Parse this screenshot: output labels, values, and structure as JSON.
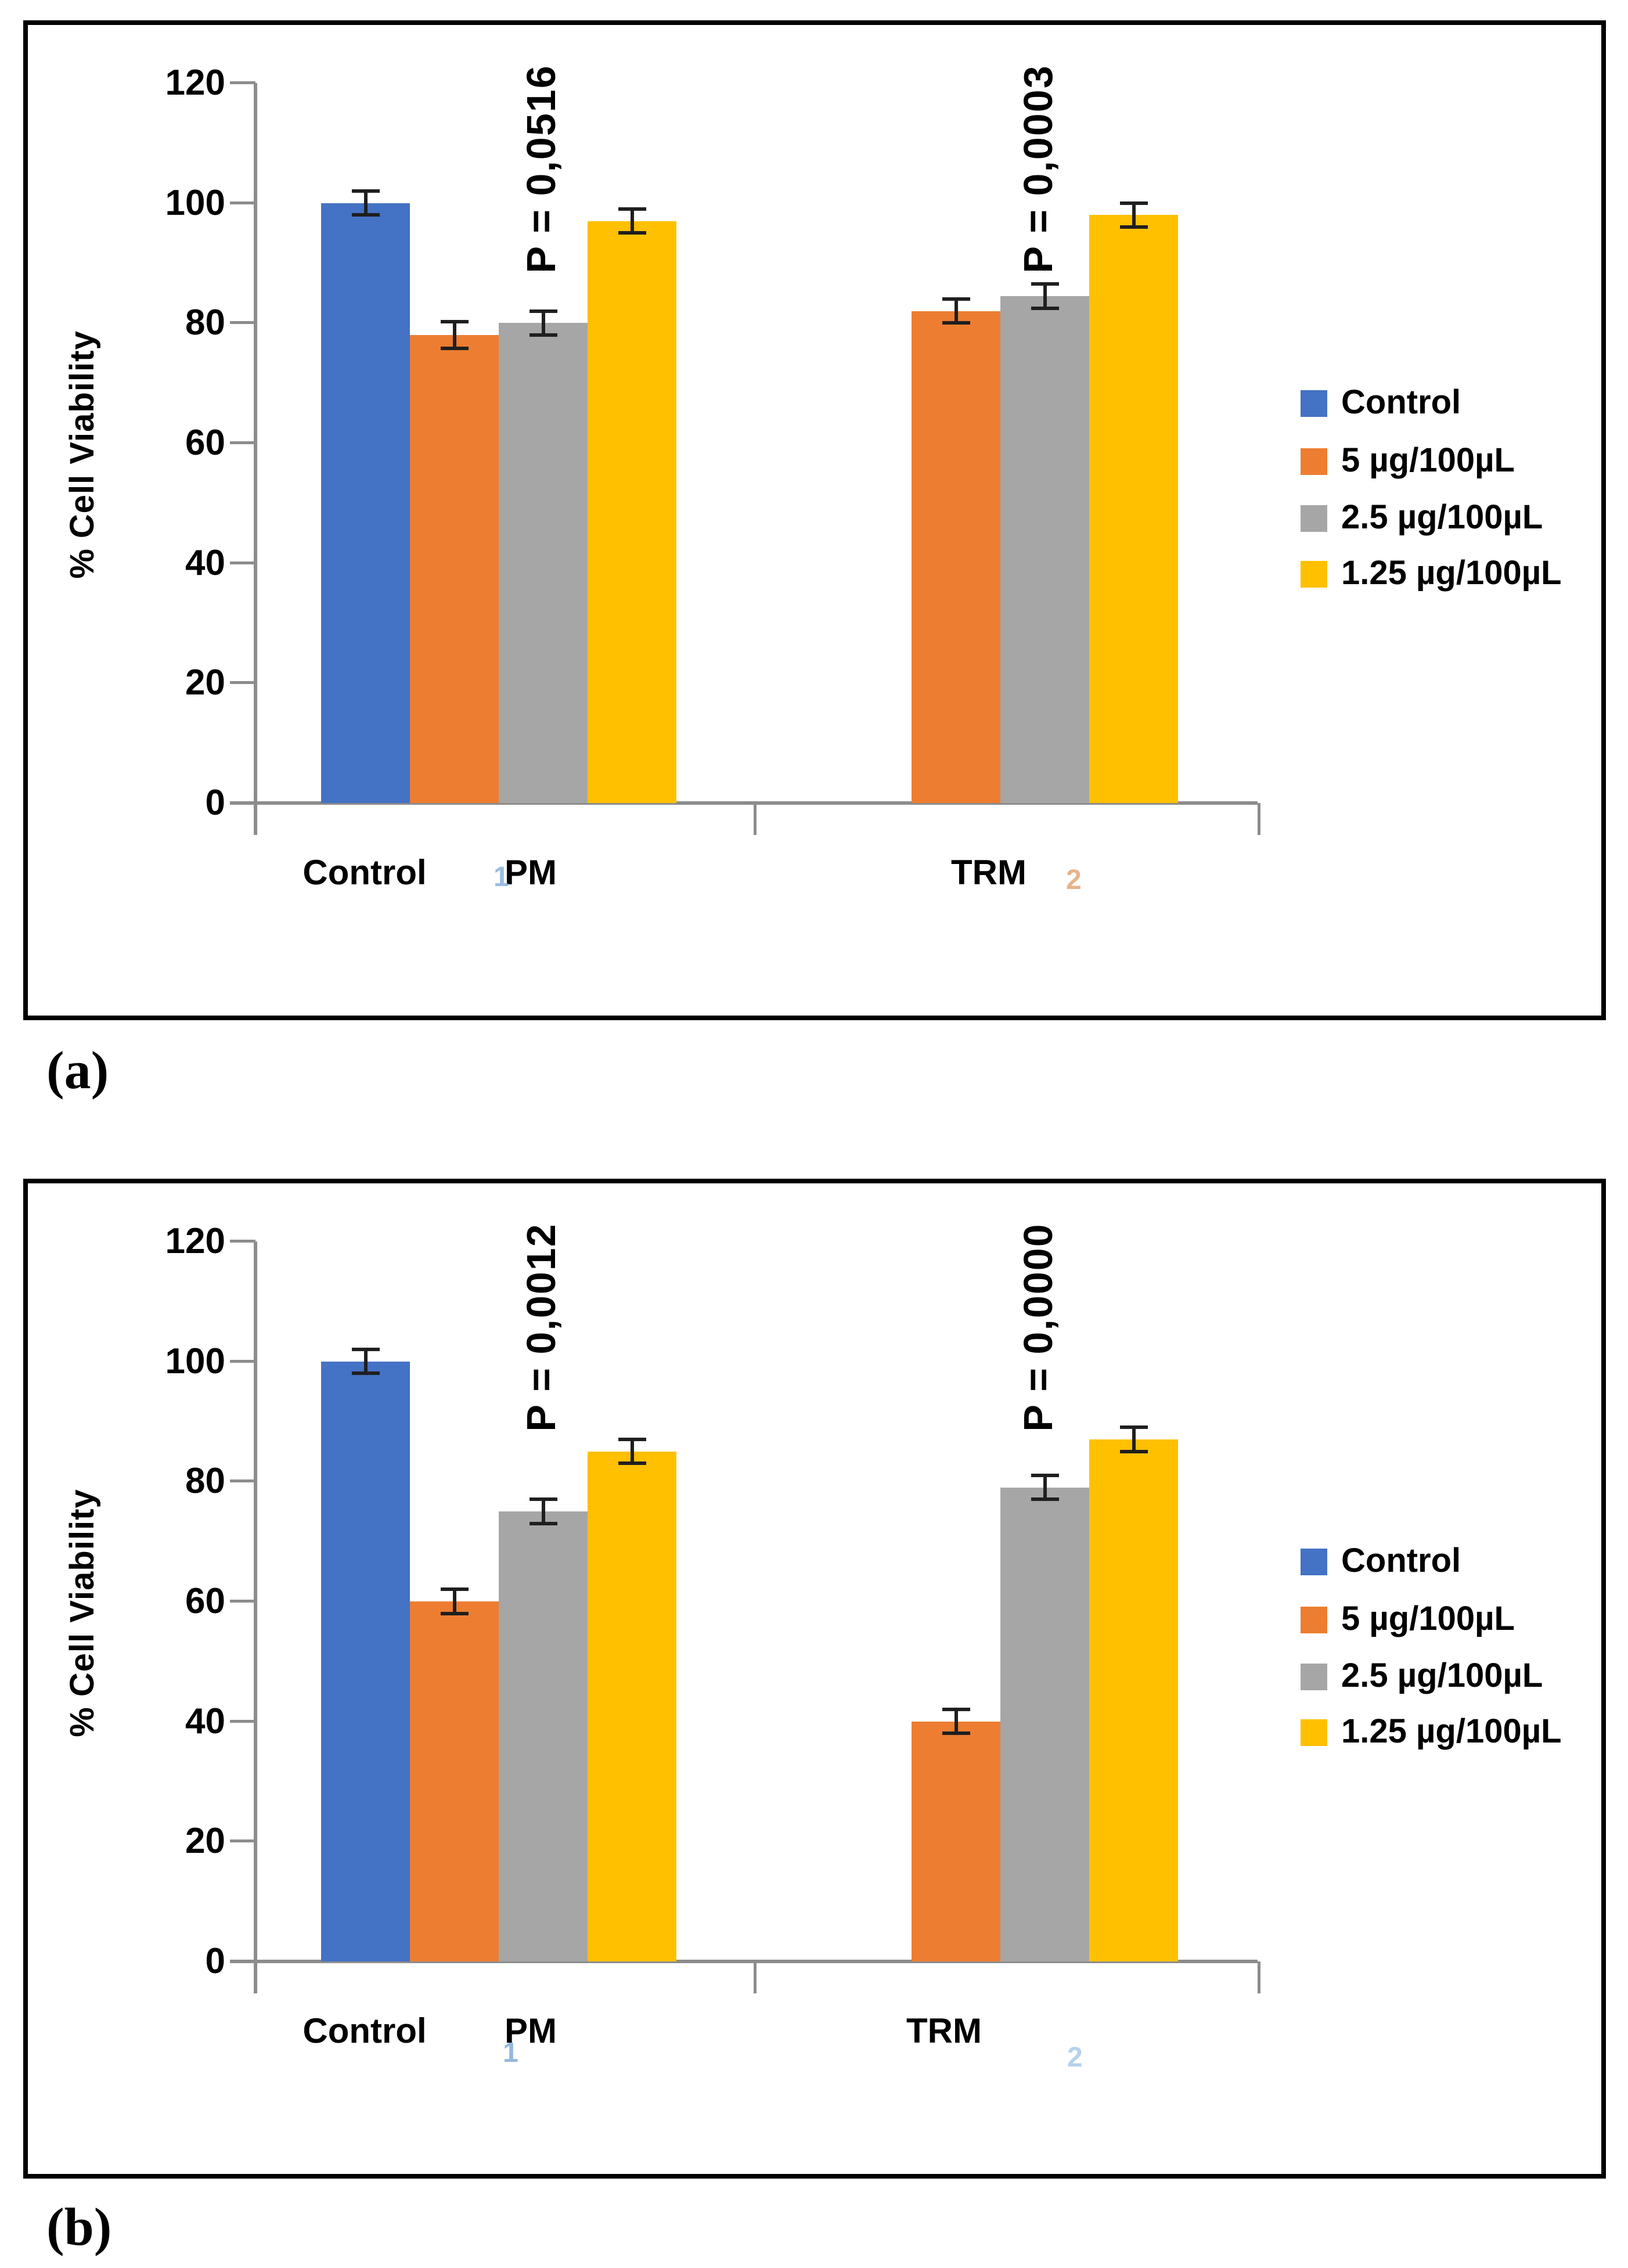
{
  "chart_data": [
    {
      "id": "a",
      "type": "bar",
      "panel_label": "(a)",
      "ylabel": "% Cell Viability",
      "ylim": [
        0,
        120
      ],
      "yticks": [
        0,
        20,
        40,
        60,
        80,
        100,
        120
      ],
      "grid": false,
      "legend_position": "right",
      "legend": [
        {
          "label": "Control",
          "color": "#4472C4"
        },
        {
          "label": "5 µg/100µL",
          "color": "#ED7D31"
        },
        {
          "label": "2.5 µg/100µL",
          "color": "#A6A6A6"
        },
        {
          "label": "1.25 µg/100µL",
          "color": "#FFC000"
        }
      ],
      "groups": [
        {
          "label": "Control",
          "bars": [
            {
              "series": "Control",
              "value": 100,
              "error": 2
            }
          ]
        },
        {
          "label": "PM",
          "tiny_mark_before": {
            "text": "1",
            "color": "#7ba6dd"
          },
          "bars": [
            {
              "series": "5 µg/100µL",
              "value": 78,
              "error": 2.2
            },
            {
              "series": "2.5 µg/100µL",
              "value": 80,
              "error": 2
            },
            {
              "series": "1.25 µg/100µL",
              "value": 97,
              "error": 2
            }
          ]
        },
        {
          "label": "TRM",
          "tiny_mark_after": {
            "text": "2",
            "color": "#e09a63"
          },
          "bars": [
            {
              "series": "5 µg/100µL",
              "value": 82,
              "error": 2
            },
            {
              "series": "2.5 µg/100µL",
              "value": 84.5,
              "error": 2
            },
            {
              "series": "1.25 µg/100µL",
              "value": 98,
              "error": 2
            }
          ]
        }
      ],
      "annotations": [
        {
          "text": "P = 0,0516",
          "x_group": "PM"
        },
        {
          "text": "P = 0,0003",
          "x_group": "TRM"
        }
      ]
    },
    {
      "id": "b",
      "type": "bar",
      "panel_label": "(b)",
      "ylabel": "% Cell Viability",
      "ylim": [
        0,
        120
      ],
      "yticks": [
        0,
        20,
        40,
        60,
        80,
        100,
        120
      ],
      "grid": false,
      "legend_position": "right",
      "legend": [
        {
          "label": "Control",
          "color": "#4472C4"
        },
        {
          "label": "5 µg/100µL",
          "color": "#ED7D31"
        },
        {
          "label": "2.5 µg/100µL",
          "color": "#A6A6A6"
        },
        {
          "label": "1.25 µg/100µL",
          "color": "#FFC000"
        }
      ],
      "groups": [
        {
          "label": "Control",
          "bars": [
            {
              "series": "Control",
              "value": 100,
              "error": 2
            }
          ]
        },
        {
          "label": "PM",
          "tiny_mark_before": {
            "text": "1",
            "color": "#6f9fd8"
          },
          "bars": [
            {
              "series": "5 µg/100µL",
              "value": 60,
              "error": 2
            },
            {
              "series": "2.5 µg/100µL",
              "value": 75,
              "error": 2
            },
            {
              "series": "1.25 µg/100µL",
              "value": 85,
              "error": 2
            }
          ]
        },
        {
          "label": "TRM",
          "tiny_mark_after": {
            "text": "2",
            "color": "#9dc3e6"
          },
          "bars": [
            {
              "series": "5 µg/100µL",
              "value": 40,
              "error": 2
            },
            {
              "series": "2.5 µg/100µL",
              "value": 79,
              "error": 2
            },
            {
              "series": "1.25 µg/100µL",
              "value": 87,
              "error": 2
            }
          ]
        }
      ],
      "annotations": [
        {
          "text": "P = 0,0012",
          "x_group": "PM"
        },
        {
          "text": "P = 0,0000",
          "x_group": "TRM"
        }
      ]
    }
  ]
}
